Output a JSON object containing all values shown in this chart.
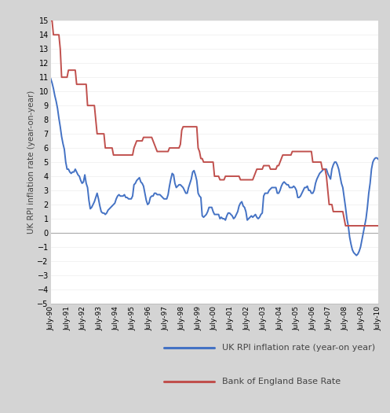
{
  "ylabel": "UK RPI inflation rate (year-on-year)",
  "ylim": [
    -5,
    15
  ],
  "yticks": [
    -5,
    -4,
    -3,
    -2,
    -1,
    0,
    1,
    2,
    3,
    4,
    5,
    6,
    7,
    8,
    9,
    10,
    11,
    12,
    13,
    14,
    15
  ],
  "xtick_labels": [
    "July-90",
    "July-91",
    "July-92",
    "July-93",
    "July-94",
    "July-95",
    "July-96",
    "July-97",
    "July-98",
    "July-99",
    "July-00",
    "July-01",
    "July-02",
    "July-03",
    "July-04",
    "July-05",
    "July-06",
    "July-07",
    "July-08",
    "July-09",
    "July-10"
  ],
  "rpi_color": "#4472C4",
  "boe_color": "#C0504D",
  "legend_rpi": "UK RPI inflation rate (year-on year)",
  "legend_boe": "Bank of England Base Rate",
  "background_color": "#ffffff",
  "outer_background": "#d4d4d4",
  "line_width": 1.4,
  "rpi_data": [
    10.9,
    10.6,
    10.2,
    9.7,
    9.3,
    8.8,
    8.1,
    7.5,
    6.8,
    6.3,
    5.9,
    5.0,
    4.5,
    4.5,
    4.3,
    4.2,
    4.3,
    4.3,
    4.5,
    4.3,
    4.1,
    4.0,
    3.7,
    3.5,
    3.6,
    4.1,
    3.5,
    3.2,
    2.3,
    1.7,
    1.8,
    2.0,
    2.2,
    2.5,
    2.8,
    2.4,
    1.9,
    1.5,
    1.4,
    1.4,
    1.3,
    1.4,
    1.6,
    1.7,
    1.8,
    1.9,
    2.0,
    2.1,
    2.4,
    2.6,
    2.7,
    2.6,
    2.6,
    2.6,
    2.7,
    2.5,
    2.5,
    2.4,
    2.4,
    2.4,
    2.6,
    3.4,
    3.5,
    3.7,
    3.8,
    3.9,
    3.6,
    3.5,
    3.3,
    2.8,
    2.3,
    2.0,
    2.1,
    2.5,
    2.6,
    2.6,
    2.8,
    2.8,
    2.7,
    2.7,
    2.7,
    2.6,
    2.5,
    2.4,
    2.4,
    2.4,
    2.7,
    3.3,
    3.8,
    4.2,
    4.1,
    3.5,
    3.2,
    3.3,
    3.4,
    3.4,
    3.3,
    3.2,
    3.0,
    2.8,
    2.8,
    3.2,
    3.5,
    3.8,
    4.3,
    4.4,
    4.1,
    3.7,
    2.8,
    2.6,
    2.5,
    1.2,
    1.1,
    1.2,
    1.3,
    1.5,
    1.8,
    1.8,
    1.8,
    1.5,
    1.3,
    1.3,
    1.3,
    1.3,
    1.0,
    1.1,
    1.0,
    1.0,
    0.9,
    1.2,
    1.4,
    1.4,
    1.3,
    1.2,
    1.0,
    1.1,
    1.3,
    1.5,
    1.9,
    2.1,
    2.2,
    1.9,
    1.8,
    1.5,
    0.9,
    1.0,
    1.1,
    1.2,
    1.1,
    1.2,
    1.3,
    1.1,
    1.0,
    1.1,
    1.3,
    1.4,
    2.6,
    2.8,
    2.8,
    2.8,
    3.0,
    3.1,
    3.2,
    3.2,
    3.2,
    3.2,
    2.8,
    2.8,
    3.0,
    3.3,
    3.5,
    3.6,
    3.5,
    3.4,
    3.4,
    3.2,
    3.2,
    3.2,
    3.3,
    3.2,
    3.0,
    2.5,
    2.5,
    2.6,
    2.8,
    3.0,
    3.2,
    3.2,
    3.3,
    3.0,
    3.0,
    2.8,
    2.8,
    3.0,
    3.5,
    3.8,
    4.0,
    4.2,
    4.3,
    4.4,
    4.5,
    4.5,
    4.5,
    4.2,
    4.0,
    3.8,
    4.5,
    4.8,
    5.0,
    5.0,
    4.8,
    4.5,
    4.0,
    3.5,
    3.2,
    2.5,
    1.8,
    1.0,
    0.5,
    -0.3,
    -0.8,
    -1.2,
    -1.4,
    -1.5,
    -1.6,
    -1.5,
    -1.3,
    -1.0,
    -0.5,
    0.0,
    0.5,
    1.0,
    1.8,
    2.8,
    3.5,
    4.5,
    5.0,
    5.2,
    5.3,
    5.3,
    5.2
  ],
  "boe_data": [
    15.0,
    15.0,
    14.0,
    14.0,
    14.0,
    14.0,
    14.0,
    13.0,
    11.0,
    11.0,
    11.0,
    11.0,
    11.0,
    11.5,
    11.5,
    11.5,
    11.5,
    11.5,
    11.5,
    10.5,
    10.5,
    10.5,
    10.5,
    10.5,
    10.5,
    10.5,
    10.5,
    9.0,
    9.0,
    9.0,
    9.0,
    9.0,
    9.0,
    8.0,
    7.0,
    7.0,
    7.0,
    7.0,
    7.0,
    7.0,
    6.0,
    6.0,
    6.0,
    6.0,
    6.0,
    6.0,
    5.5,
    5.5,
    5.5,
    5.5,
    5.5,
    5.5,
    5.5,
    5.5,
    5.5,
    5.5,
    5.5,
    5.5,
    5.5,
    5.5,
    5.5,
    6.0,
    6.25,
    6.5,
    6.5,
    6.5,
    6.5,
    6.5,
    6.75,
    6.75,
    6.75,
    6.75,
    6.75,
    6.75,
    6.75,
    6.5,
    6.25,
    6.0,
    5.75,
    5.75,
    5.75,
    5.75,
    5.75,
    5.75,
    5.75,
    5.75,
    5.75,
    6.0,
    6.0,
    6.0,
    6.0,
    6.0,
    6.0,
    6.0,
    6.0,
    6.25,
    7.25,
    7.5,
    7.5,
    7.5,
    7.5,
    7.5,
    7.5,
    7.5,
    7.5,
    7.5,
    7.5,
    7.5,
    6.0,
    5.75,
    5.25,
    5.25,
    5.0,
    5.0,
    5.0,
    5.0,
    5.0,
    5.0,
    5.0,
    5.0,
    4.0,
    4.0,
    4.0,
    4.0,
    3.75,
    3.75,
    3.75,
    3.75,
    4.0,
    4.0,
    4.0,
    4.0,
    4.0,
    4.0,
    4.0,
    4.0,
    4.0,
    4.0,
    4.0,
    3.75,
    3.75,
    3.75,
    3.75,
    3.75,
    3.75,
    3.75,
    3.75,
    3.75,
    3.75,
    4.0,
    4.25,
    4.5,
    4.5,
    4.5,
    4.5,
    4.5,
    4.75,
    4.75,
    4.75,
    4.75,
    4.75,
    4.5,
    4.5,
    4.5,
    4.5,
    4.5,
    4.75,
    4.75,
    5.0,
    5.25,
    5.5,
    5.5,
    5.5,
    5.5,
    5.5,
    5.5,
    5.5,
    5.75,
    5.75,
    5.75,
    5.75,
    5.75,
    5.75,
    5.75,
    5.75,
    5.75,
    5.75,
    5.75,
    5.75,
    5.75,
    5.75,
    5.75,
    5.0,
    5.0,
    5.0,
    5.0,
    5.0,
    5.0,
    5.0,
    4.5,
    4.5,
    4.5,
    4.0,
    3.0,
    2.0,
    2.0,
    2.0,
    1.5,
    1.5,
    1.5,
    1.5,
    1.5,
    1.5,
    1.5,
    1.5,
    1.0,
    0.5,
    0.5,
    0.5,
    0.5,
    0.5,
    0.5,
    0.5,
    0.5,
    0.5,
    0.5,
    0.5,
    0.5,
    0.5,
    0.5,
    0.5,
    0.5,
    0.5,
    0.5,
    0.5,
    0.5,
    0.5,
    0.5,
    0.5,
    0.5,
    0.5
  ]
}
